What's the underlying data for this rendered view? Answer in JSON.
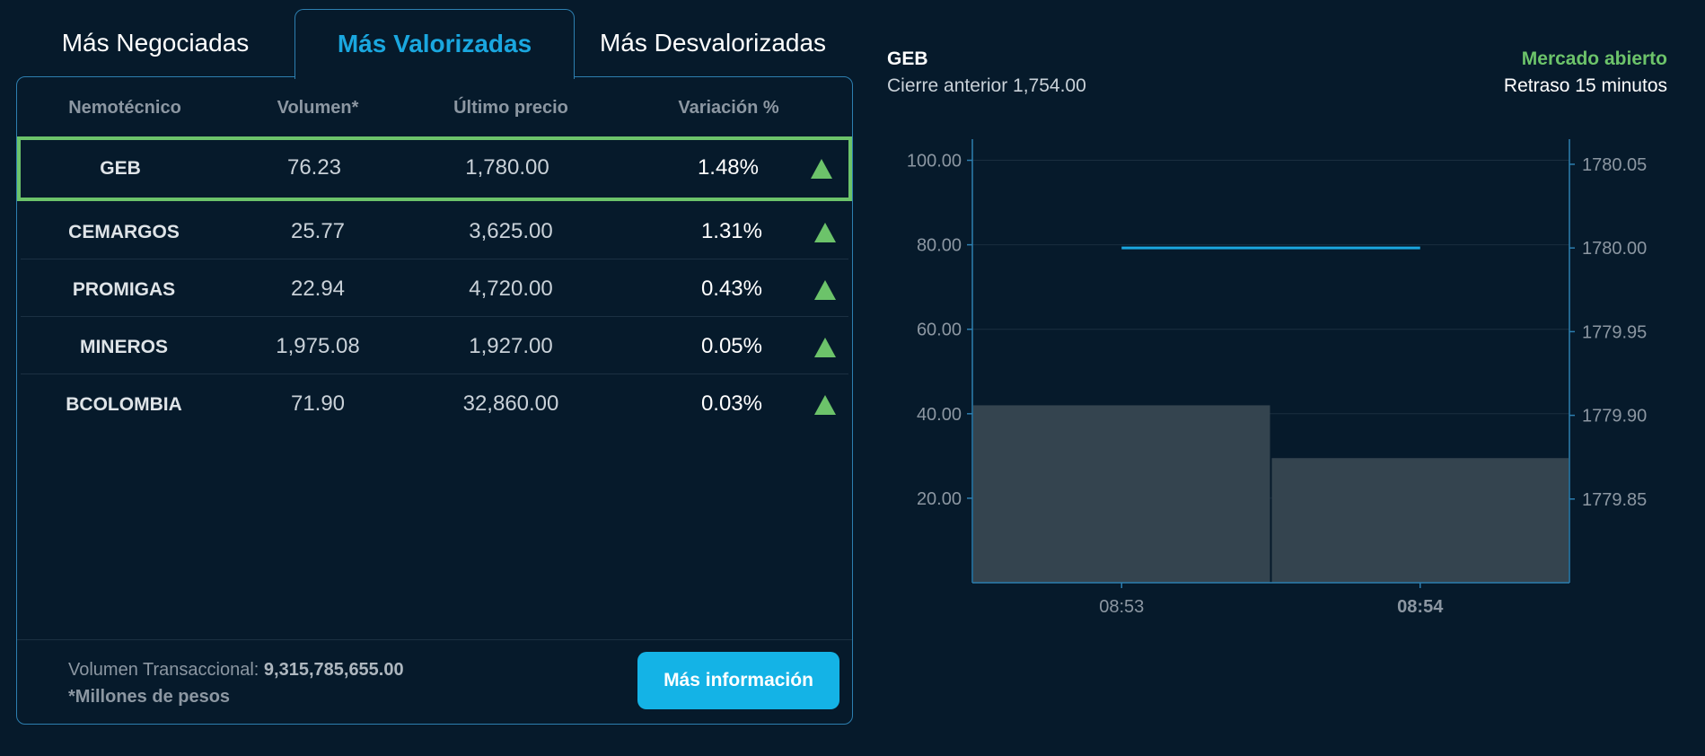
{
  "tabs": [
    {
      "label": "Más Negociadas",
      "active": false
    },
    {
      "label": "Más Valorizadas",
      "active": true
    },
    {
      "label": "Más Desvalorizadas",
      "active": false
    }
  ],
  "table": {
    "headers": [
      "Nemotécnico",
      "Volumen*",
      "Último precio",
      "Variación %"
    ],
    "rows": [
      {
        "ticker": "GEB",
        "volume": "76.23",
        "price": "1,780.00",
        "variation": "1.48%",
        "trend": "up",
        "selected": true
      },
      {
        "ticker": "CEMARGOS",
        "volume": "25.77",
        "price": "3,625.00",
        "variation": "1.31%",
        "trend": "up"
      },
      {
        "ticker": "PROMIGAS",
        "volume": "22.94",
        "price": "4,720.00",
        "variation": "0.43%",
        "trend": "up"
      },
      {
        "ticker": "MINEROS",
        "volume": "1,975.08",
        "price": "1,927.00",
        "variation": "0.05%",
        "trend": "up"
      },
      {
        "ticker": "BCOLOMBIA",
        "volume": "71.90",
        "price": "32,860.00",
        "variation": "0.03%",
        "trend": "up"
      }
    ]
  },
  "footer": {
    "volume_label": "Volumen Transaccional:",
    "volume_value": "9,315,785,655.00",
    "note": "*Millones de pesos",
    "button": "Más información"
  },
  "detail": {
    "symbol": "GEB",
    "previous_close": "Cierre anterior 1,754.00",
    "market_status": "Mercado abierto",
    "delay": "Retraso 15 minutos"
  },
  "colors": {
    "background": "#061a2b",
    "accent": "#14b3e6",
    "up": "#6cc36a",
    "bar": "#34444f",
    "line": "#1aa7df"
  },
  "chart_data": {
    "type": "bar",
    "categories": [
      "08:53",
      "08:54"
    ],
    "series": [
      {
        "kind": "bar",
        "axis": "left",
        "values": [
          42,
          29.5
        ]
      },
      {
        "kind": "line",
        "axis": "right",
        "values": [
          1780.0,
          1780.0
        ]
      }
    ],
    "y_left_ticks": [
      "100.00",
      "80.00",
      "60.00",
      "40.00",
      "20.00"
    ],
    "y_left_lim": [
      0,
      105
    ],
    "y_right_ticks": [
      "1780.05",
      "1780.00",
      "1779.95",
      "1779.90",
      "1779.85"
    ],
    "y_right_lim": [
      1779.8,
      1780.065
    ],
    "grid": true
  }
}
